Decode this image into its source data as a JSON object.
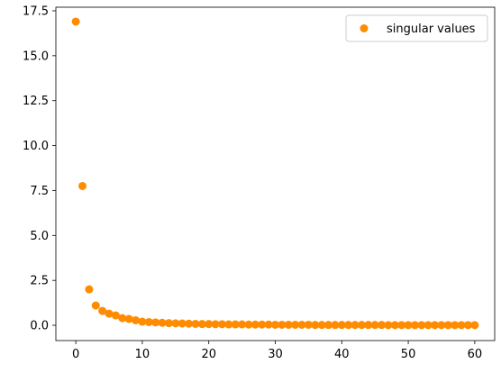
{
  "chart_data": {
    "type": "scatter",
    "title": "",
    "xlabel": "",
    "ylabel": "",
    "xlim": [
      -3,
      63
    ],
    "ylim": [
      -0.85,
      17.7
    ],
    "xticks": [
      0,
      10,
      20,
      30,
      40,
      50,
      60
    ],
    "yticks": [
      0.0,
      2.5,
      5.0,
      7.5,
      10.0,
      12.5,
      15.0,
      17.5
    ],
    "ytick_labels": [
      "0.0",
      "2.5",
      "5.0",
      "7.5",
      "10.0",
      "12.5",
      "15.0",
      "17.5"
    ],
    "grid": false,
    "legend_position": "top-right",
    "series": [
      {
        "name": "singular values",
        "color": "#ff8c00",
        "x": [
          0,
          1,
          2,
          3,
          4,
          5,
          6,
          7,
          8,
          9,
          10,
          11,
          12,
          13,
          14,
          15,
          16,
          17,
          18,
          19,
          20,
          21,
          22,
          23,
          24,
          25,
          26,
          27,
          28,
          29,
          30,
          31,
          32,
          33,
          34,
          35,
          36,
          37,
          38,
          39,
          40,
          41,
          42,
          43,
          44,
          45,
          46,
          47,
          48,
          49,
          50,
          51,
          52,
          53,
          54,
          55,
          56,
          57,
          58,
          59,
          60
        ],
        "y": [
          16.9,
          7.75,
          2.0,
          1.1,
          0.8,
          0.65,
          0.55,
          0.4,
          0.35,
          0.28,
          0.2,
          0.18,
          0.16,
          0.14,
          0.12,
          0.11,
          0.1,
          0.09,
          0.08,
          0.07,
          0.07,
          0.06,
          0.06,
          0.05,
          0.05,
          0.05,
          0.04,
          0.04,
          0.04,
          0.04,
          0.03,
          0.03,
          0.03,
          0.03,
          0.03,
          0.03,
          0.02,
          0.02,
          0.02,
          0.02,
          0.02,
          0.02,
          0.02,
          0.02,
          0.02,
          0.02,
          0.02,
          0.01,
          0.01,
          0.01,
          0.01,
          0.01,
          0.01,
          0.01,
          0.01,
          0.01,
          0.01,
          0.01,
          0.01,
          0.01,
          0.01
        ]
      }
    ]
  }
}
